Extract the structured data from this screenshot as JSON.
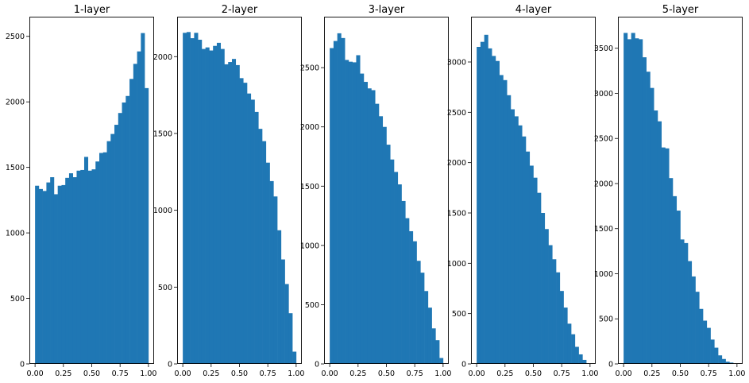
{
  "chart_data": [
    {
      "type": "histogram",
      "title": "1-layer",
      "bar_color": "#1f77b4",
      "xlim": [
        -0.05,
        1.05
      ],
      "ylim": [
        0,
        2650
      ],
      "xticks": [
        "0.00",
        "0.25",
        "0.50",
        "0.75",
        "1.00"
      ],
      "xtick_values": [
        0,
        0.25,
        0.5,
        0.75,
        1.0
      ],
      "yticks": [
        "0",
        "500",
        "1000",
        "1500",
        "2000",
        "2500"
      ],
      "ytick_values": [
        0,
        500,
        1000,
        1500,
        2000,
        2500
      ],
      "bin_edges": [
        0,
        1
      ],
      "values": [
        1360,
        1335,
        1320,
        1385,
        1425,
        1295,
        1360,
        1365,
        1420,
        1455,
        1425,
        1475,
        1480,
        1580,
        1475,
        1485,
        1545,
        1610,
        1615,
        1700,
        1755,
        1825,
        1915,
        1995,
        2045,
        2175,
        2290,
        2385,
        2525,
        2105
      ]
    },
    {
      "type": "histogram",
      "title": "2-layer",
      "bar_color": "#1f77b4",
      "xlim": [
        -0.05,
        1.05
      ],
      "ylim": [
        0,
        2260
      ],
      "xticks": [
        "0.00",
        "0.25",
        "0.50",
        "0.75",
        "1.00"
      ],
      "xtick_values": [
        0,
        0.25,
        0.5,
        0.75,
        1.0
      ],
      "yticks": [
        "0",
        "500",
        "1000",
        "1500",
        "2000"
      ],
      "ytick_values": [
        0,
        500,
        1000,
        1500,
        2000
      ],
      "bin_edges": [
        0,
        1
      ],
      "values": [
        2155,
        2160,
        2120,
        2155,
        2110,
        2050,
        2060,
        2040,
        2070,
        2090,
        2050,
        1950,
        1965,
        1985,
        1945,
        1860,
        1830,
        1760,
        1720,
        1640,
        1530,
        1450,
        1310,
        1190,
        1090,
        870,
        680,
        520,
        330,
        80
      ]
    },
    {
      "type": "histogram",
      "title": "3-layer",
      "bar_color": "#1f77b4",
      "xlim": [
        -0.05,
        1.05
      ],
      "ylim": [
        0,
        2930
      ],
      "xticks": [
        "0.00",
        "0.25",
        "0.50",
        "0.75",
        "1.00"
      ],
      "xtick_values": [
        0,
        0.25,
        0.5,
        0.75,
        1.0
      ],
      "yticks": [
        "0",
        "500",
        "1000",
        "1500",
        "2000",
        "2500"
      ],
      "ytick_values": [
        0,
        500,
        1000,
        1500,
        2000,
        2500
      ],
      "bin_edges": [
        0,
        1
      ],
      "values": [
        2665,
        2725,
        2790,
        2750,
        2565,
        2550,
        2545,
        2605,
        2450,
        2380,
        2325,
        2310,
        2195,
        2090,
        2000,
        1850,
        1725,
        1620,
        1515,
        1375,
        1230,
        1120,
        1035,
        870,
        770,
        615,
        475,
        300,
        200,
        50
      ]
    },
    {
      "type": "histogram",
      "title": "4-layer",
      "bar_color": "#1f77b4",
      "xlim": [
        -0.05,
        1.05
      ],
      "ylim": [
        0,
        3450
      ],
      "xticks": [
        "0.00",
        "0.25",
        "0.50",
        "0.75",
        "1.00"
      ],
      "xtick_values": [
        0,
        0.25,
        0.5,
        0.75,
        1.0
      ],
      "yticks": [
        "0",
        "500",
        "1000",
        "1500",
        "2000",
        "2500",
        "3000"
      ],
      "ytick_values": [
        0,
        500,
        1000,
        1500,
        2000,
        2500,
        3000
      ],
      "bin_edges": [
        0,
        1
      ],
      "values": [
        3150,
        3200,
        3270,
        3135,
        3060,
        3010,
        2870,
        2820,
        2670,
        2530,
        2460,
        2370,
        2260,
        2110,
        1970,
        1850,
        1700,
        1500,
        1340,
        1180,
        1040,
        910,
        725,
        560,
        400,
        295,
        170,
        95,
        40,
        0
      ]
    },
    {
      "type": "histogram",
      "title": "5-layer",
      "bar_color": "#1f77b4",
      "xlim": [
        -0.05,
        1.05
      ],
      "ylim": [
        0,
        3850
      ],
      "xticks": [
        "0.00",
        "0.25",
        "0.50",
        "0.75",
        "1.00"
      ],
      "xtick_values": [
        0,
        0.25,
        0.5,
        0.75,
        1.0
      ],
      "yticks": [
        "0",
        "500",
        "1000",
        "1500",
        "2000",
        "2500",
        "3000",
        "3500"
      ],
      "ytick_values": [
        0,
        500,
        1000,
        1500,
        2000,
        2500,
        3000,
        3500
      ],
      "bin_edges": [
        0,
        1
      ],
      "values": [
        3670,
        3600,
        3670,
        3610,
        3600,
        3400,
        3240,
        3060,
        2810,
        2690,
        2400,
        2390,
        2060,
        1860,
        1700,
        1380,
        1340,
        1140,
        970,
        800,
        610,
        480,
        400,
        270,
        180,
        95,
        55,
        25,
        15,
        0
      ]
    }
  ]
}
